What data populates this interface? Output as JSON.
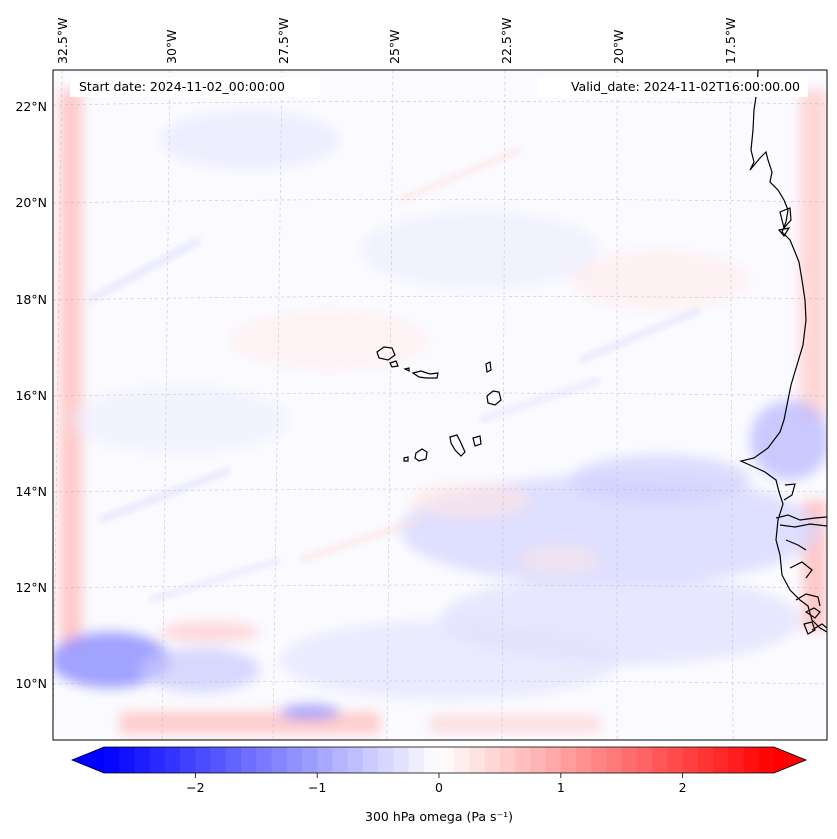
{
  "map": {
    "header": {
      "start_date": "Start date: 2024-11-02_00:00:00",
      "valid_date": "Valid_date: 2024-11-02T16:00:00.00"
    },
    "lon_labels": [
      "32.5°W",
      "30°W",
      "27.5°W",
      "25°W",
      "22.5°W",
      "20°W",
      "17.5°W"
    ],
    "lat_labels": [
      "22°N",
      "20°N",
      "18°N",
      "16°N",
      "14°N",
      "12°N",
      "10°N"
    ],
    "gridlines": true,
    "coastline_color": "#000000",
    "field": "300 hPa omega"
  },
  "colorbar": {
    "label": "300 hPa omega (Pa s⁻¹)",
    "ticks": [
      "−2",
      "−1",
      "0",
      "1",
      "2"
    ],
    "tick_values": [
      -2,
      -1,
      0,
      1,
      2
    ],
    "range": [
      -2.75,
      2.75
    ],
    "extend": "both",
    "colormap": "bwr",
    "colors": {
      "low": "#0000ff",
      "mid": "#ffffff",
      "high": "#ff0000"
    }
  }
}
